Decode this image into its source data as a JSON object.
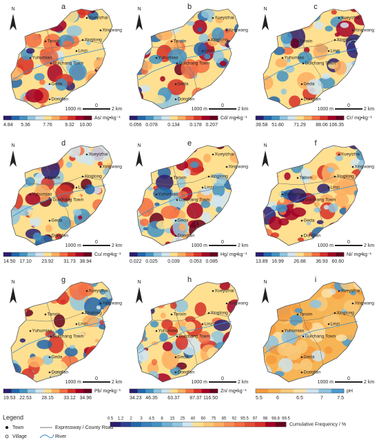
{
  "north": "N",
  "scale_bar": [
    "1000 m",
    "0",
    "2 km"
  ],
  "towns": [
    "Xueyizhai",
    "Xingwang",
    "Xinglong",
    "Tanxin",
    "Linzi",
    "Yuhumiao",
    "Guichang Town",
    "Geda",
    "Dongfan"
  ],
  "panels": [
    {
      "letter": "a",
      "ticks": [
        "4.84",
        "5.36",
        "7.76",
        "9.32",
        "10.00"
      ],
      "unit": "As/ mg•kg⁻¹"
    },
    {
      "letter": "b",
      "ticks": [
        "0.056",
        "0.078",
        "0.134",
        "0.178",
        "0.207"
      ],
      "unit": "Cd/ mg•kg⁻¹"
    },
    {
      "letter": "c",
      "ticks": [
        "39.58",
        "51.80",
        "71.29",
        "88.06",
        "106.35"
      ],
      "unit": "Cr/ mg•kg⁻¹"
    },
    {
      "letter": "d",
      "ticks": [
        "14.50",
        "17.10",
        "23.92",
        "31.73",
        "38.94"
      ],
      "unit": "Cu/ mg•kg⁻¹"
    },
    {
      "letter": "e",
      "ticks": [
        "0.022",
        "0.025",
        "0.039",
        "0.053",
        "0.085"
      ],
      "unit": "Hg/ mg•kg⁻¹"
    },
    {
      "letter": "f",
      "ticks": [
        "13.89",
        "16.99",
        "26.88",
        "36.93",
        "60.60"
      ],
      "unit": "Ni/ mg•kg⁻¹"
    },
    {
      "letter": "g",
      "ticks": [
        "19.53",
        "22.53",
        "28.15",
        "33.12",
        "34.96"
      ],
      "unit": "Pb/ mg•kg⁻¹"
    },
    {
      "letter": "h",
      "ticks": [
        "34.23",
        "46.35",
        "63.37",
        "87.37",
        "116.50"
      ],
      "unit": "Zn/ mg•kg⁻¹"
    },
    {
      "letter": "i",
      "ticks": [
        "5.5",
        "6",
        "6.5",
        "7",
        "7.5"
      ],
      "unit": "pH"
    }
  ],
  "legend": {
    "title": "Legend",
    "items": [
      "Town",
      "Village",
      "Expressway / County Road",
      "River"
    ],
    "frequency_ticks": [
      0.5,
      1.2,
      2,
      3,
      4.5,
      8,
      15,
      25,
      40,
      60,
      75,
      85,
      92,
      95.5,
      97,
      98,
      98.8,
      99.5
    ],
    "frequency_label": "Cumulative Frequency / %"
  }
}
